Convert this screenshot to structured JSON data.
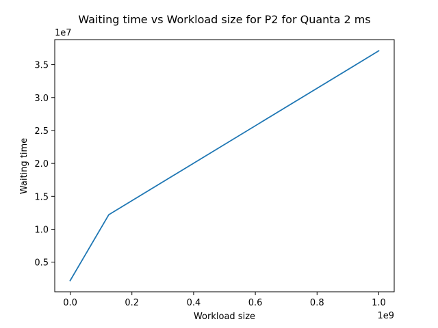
{
  "chart_data": {
    "type": "line",
    "title": "Waiting time vs Workload size for P2 for Quanta 2 ms",
    "xlabel": "Workload size",
    "ylabel": "Waiting time",
    "x_scale_label": "1e9",
    "y_scale_label": "1e7",
    "x_ticks": [
      0.0,
      0.2,
      0.4,
      0.6,
      0.8,
      1.0
    ],
    "x_tick_labels": [
      "0.0",
      "0.2",
      "0.4",
      "0.6",
      "0.8",
      "1.0"
    ],
    "y_ticks": [
      0.5,
      1.0,
      1.5,
      2.0,
      2.5,
      3.0,
      3.5
    ],
    "y_tick_labels": [
      "0.5",
      "1.0",
      "1.5",
      "2.0",
      "2.5",
      "3.0",
      "3.5"
    ],
    "xlim": [
      -0.05,
      1.05
    ],
    "ylim": [
      0.05,
      3.88
    ],
    "grid": false,
    "series": [
      {
        "x": [
          0.0,
          0.125,
          1.0
        ],
        "y": [
          0.22,
          1.22,
          3.71
        ]
      }
    ],
    "colors": {
      "line": "#1f77b4",
      "axes": "#000000"
    }
  }
}
